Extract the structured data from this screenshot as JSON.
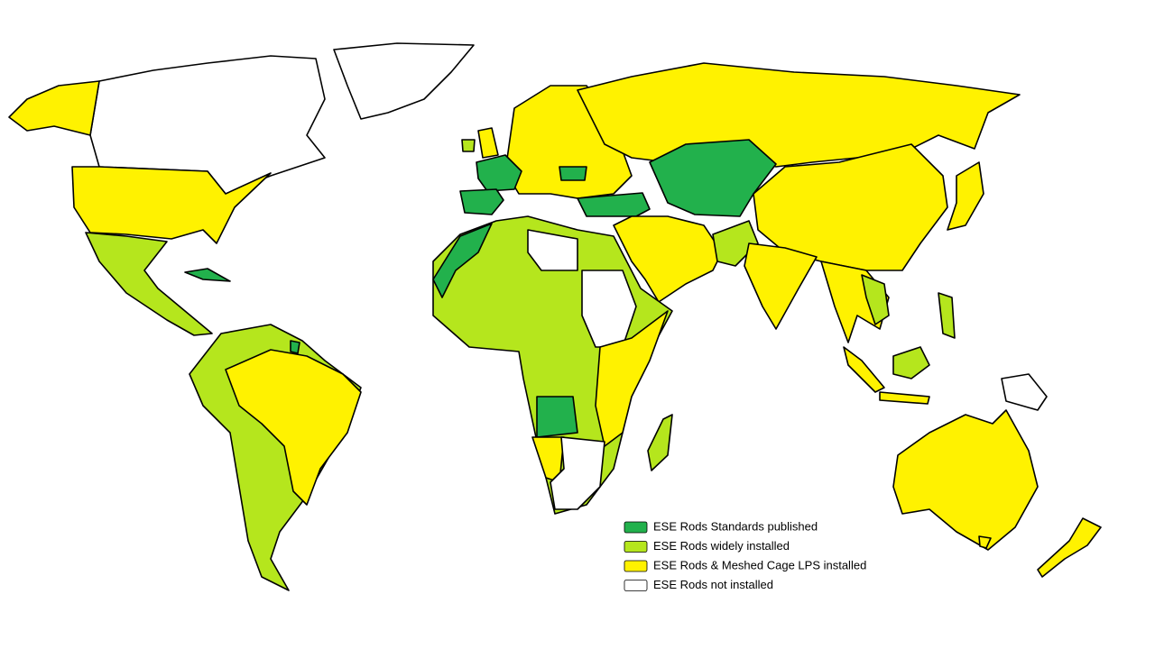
{
  "legend": {
    "items": [
      {
        "label": "ESE Rods Standards published",
        "color": "#22b14c"
      },
      {
        "label": "ESE Rods widely installed",
        "color": "#b5e61d"
      },
      {
        "label": "ESE Rods & Meshed Cage LPS installed",
        "color": "#fff200"
      },
      {
        "label": "ESE Rods not installed",
        "color": "#ffffff"
      }
    ]
  }
}
